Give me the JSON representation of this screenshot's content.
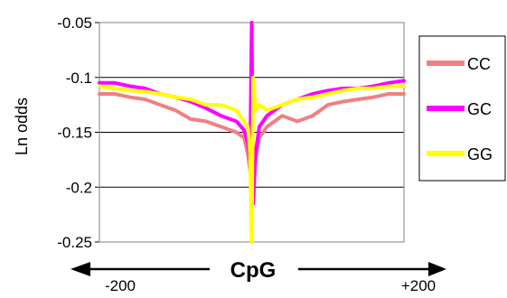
{
  "chart_data": {
    "type": "line",
    "title": "",
    "ylabel": "Ln odds",
    "xlabel": "CpG",
    "x_end_labels": [
      "-200",
      "+200"
    ],
    "ylim": [
      -0.25,
      -0.05
    ],
    "xlim": [
      -200,
      200
    ],
    "y_ticks": [
      "-0.05",
      "-0.1",
      "-0.15",
      "-0.2",
      "-0.25"
    ],
    "y_tick_values": [
      -0.05,
      -0.1,
      -0.15,
      -0.2,
      -0.25
    ],
    "grid": true,
    "legend_position": "right",
    "series": [
      {
        "name": "CC",
        "color": "#F08080",
        "x": [
          -200,
          -180,
          -160,
          -140,
          -120,
          -100,
          -80,
          -60,
          -40,
          -20,
          -10,
          -5,
          -2,
          0,
          2,
          5,
          10,
          20,
          40,
          60,
          80,
          100,
          120,
          140,
          160,
          180,
          200
        ],
        "y": [
          -0.115,
          -0.115,
          -0.118,
          -0.12,
          -0.125,
          -0.13,
          -0.138,
          -0.14,
          -0.145,
          -0.15,
          -0.155,
          -0.17,
          -0.185,
          -0.13,
          -0.2,
          -0.175,
          -0.155,
          -0.145,
          -0.135,
          -0.14,
          -0.135,
          -0.125,
          -0.122,
          -0.12,
          -0.118,
          -0.115,
          -0.115
        ]
      },
      {
        "name": "GC",
        "color": "#FF00FF",
        "x": [
          -200,
          -180,
          -160,
          -140,
          -120,
          -100,
          -80,
          -60,
          -40,
          -20,
          -10,
          -5,
          -2,
          0,
          2,
          5,
          10,
          20,
          40,
          60,
          80,
          100,
          120,
          140,
          160,
          180,
          200
        ],
        "y": [
          -0.105,
          -0.105,
          -0.108,
          -0.11,
          -0.115,
          -0.118,
          -0.122,
          -0.128,
          -0.135,
          -0.14,
          -0.148,
          -0.16,
          -0.175,
          -0.05,
          -0.215,
          -0.17,
          -0.145,
          -0.135,
          -0.125,
          -0.12,
          -0.115,
          -0.112,
          -0.11,
          -0.11,
          -0.108,
          -0.105,
          -0.103
        ]
      },
      {
        "name": "GG",
        "color": "#FFFF00",
        "x": [
          -200,
          -180,
          -160,
          -140,
          -120,
          -100,
          -80,
          -60,
          -40,
          -20,
          -10,
          -5,
          -2,
          0,
          2,
          5,
          10,
          20,
          40,
          60,
          80,
          100,
          120,
          140,
          160,
          180,
          200
        ],
        "y": [
          -0.108,
          -0.11,
          -0.112,
          -0.113,
          -0.115,
          -0.118,
          -0.12,
          -0.125,
          -0.125,
          -0.13,
          -0.14,
          -0.145,
          -0.17,
          -0.25,
          -0.1,
          -0.13,
          -0.125,
          -0.13,
          -0.125,
          -0.12,
          -0.118,
          -0.115,
          -0.112,
          -0.11,
          -0.11,
          -0.108,
          -0.108
        ]
      }
    ]
  }
}
